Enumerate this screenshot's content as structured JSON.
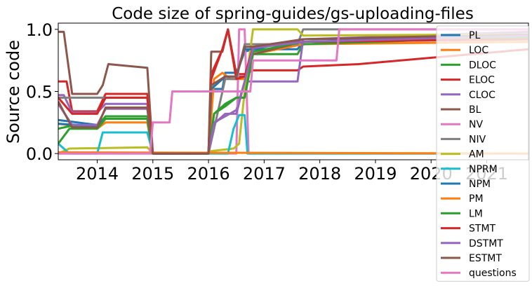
{
  "chart_data": {
    "type": "line",
    "title": "Code size of spring-guides/gs-uploading-files",
    "xlabel": "",
    "ylabel": "Source code",
    "xlim": [
      2013.3,
      2021.75
    ],
    "ylim": [
      -0.05,
      1.05
    ],
    "x_ticks": [
      2014,
      2015,
      2016,
      2017,
      2018,
      2019,
      2020,
      2021
    ],
    "x_tick_labels": [
      "2014",
      "2015",
      "2016",
      "2017",
      "2018",
      "2019",
      "2020",
      "2021"
    ],
    "y_ticks": [
      0.0,
      0.5,
      1.0
    ],
    "y_tick_labels": [
      "0.0",
      "0.5",
      "1.0"
    ],
    "legend_position": "right",
    "series": [
      {
        "name": "PL",
        "color": "#1f77b4",
        "x": [
          2013.3,
          2014.0,
          2014.15,
          2014.9,
          2015.0,
          2016.0,
          2016.05,
          2016.25,
          2016.3,
          2016.5,
          2016.65,
          2016.8,
          2017.6,
          2017.7,
          2021.75
        ],
        "y": [
          0.27,
          0.23,
          0.28,
          0.28,
          0.0,
          0.0,
          0.52,
          0.52,
          0.65,
          0.65,
          0.82,
          0.84,
          0.84,
          0.9,
          0.92
        ]
      },
      {
        "name": "LOC",
        "color": "#ff7f0e",
        "x": [
          2013.3,
          2014.0,
          2014.15,
          2014.9,
          2015.0,
          2016.0,
          2016.1,
          2016.25,
          2016.4,
          2016.65,
          2016.8,
          2017.7,
          2021.75
        ],
        "y": [
          0.24,
          0.2,
          0.25,
          0.25,
          0.0,
          0.0,
          0.6,
          0.65,
          0.6,
          0.6,
          0.8,
          0.88,
          0.9
        ]
      },
      {
        "name": "DLOC",
        "color": "#2ca02c",
        "x": [
          2013.3,
          2013.5,
          2014.0,
          2014.15,
          2014.9,
          2015.0,
          2016.0,
          2016.1,
          2016.3,
          2016.5,
          2016.65,
          2016.8,
          2017.6,
          2017.7,
          2021.75
        ],
        "y": [
          0.2,
          0.22,
          0.22,
          0.3,
          0.3,
          0.0,
          0.0,
          0.32,
          0.38,
          0.45,
          0.45,
          0.8,
          0.8,
          0.88,
          0.94
        ]
      },
      {
        "name": "ELOC",
        "color": "#d62728",
        "x": [
          2013.3,
          2013.45,
          2013.55,
          2014.0,
          2014.15,
          2014.9,
          2015.0,
          2016.0,
          2016.05,
          2016.25,
          2016.35,
          2016.5,
          2016.65,
          2016.8,
          2017.6,
          2017.7,
          2018.7,
          2021.75
        ],
        "y": [
          0.58,
          0.58,
          0.34,
          0.34,
          0.48,
          0.48,
          0.0,
          0.0,
          0.64,
          0.84,
          1.0,
          0.64,
          0.64,
          0.67,
          0.67,
          0.7,
          0.72,
          0.84
        ]
      },
      {
        "name": "CLOC",
        "color": "#9467bd",
        "x": [
          2013.3,
          2013.4,
          2013.55,
          2014.0,
          2014.15,
          2014.9,
          2015.0,
          2016.0,
          2016.1,
          2016.3,
          2016.5,
          2016.65,
          2016.8,
          2017.6,
          2017.7,
          2021.75
        ],
        "y": [
          0.47,
          0.47,
          0.33,
          0.33,
          0.4,
          0.4,
          0.0,
          0.0,
          0.25,
          0.3,
          0.35,
          0.58,
          0.58,
          0.58,
          0.92,
          0.98
        ]
      },
      {
        "name": "BL",
        "color": "#8c564b",
        "x": [
          2013.3,
          2013.4,
          2013.55,
          2014.0,
          2014.1,
          2014.2,
          2014.9,
          2015.0,
          2016.0,
          2016.05,
          2016.25,
          2016.35,
          2016.5,
          2016.65,
          2016.8,
          2017.7,
          2021.75
        ],
        "y": [
          0.98,
          0.98,
          0.48,
          0.48,
          0.55,
          0.72,
          0.69,
          0.0,
          0.0,
          0.82,
          0.82,
          1.0,
          0.62,
          0.62,
          0.8,
          0.9,
          0.92
        ]
      },
      {
        "name": "NV",
        "color": "#e377c2",
        "x": [
          2013.3,
          2014.9,
          2015.0,
          2016.0,
          2016.5,
          2016.55,
          2016.65,
          2016.72,
          2016.8,
          2021.75
        ],
        "y": [
          0.0,
          0.0,
          0.0,
          0.0,
          0.0,
          1.0,
          1.0,
          0.0,
          0.0,
          0.0
        ]
      },
      {
        "name": "NIV",
        "color": "#7f7f7f",
        "x": [
          2013.3,
          2014.9,
          2015.0,
          2016.0,
          2016.3,
          2016.5,
          2016.65,
          2016.8,
          2017.6,
          2017.7,
          2021.75
        ],
        "y": [
          0.45,
          0.45,
          0.0,
          0.0,
          0.6,
          0.6,
          0.88,
          0.88,
          0.88,
          1.0,
          1.0
        ]
      },
      {
        "name": "AM",
        "color": "#bcbd22",
        "x": [
          2013.3,
          2013.5,
          2014.9,
          2015.0,
          2016.0,
          2016.05,
          2016.45,
          2016.55,
          2016.65,
          2016.8,
          2017.6,
          2017.7,
          2021.75
        ],
        "y": [
          0.0,
          0.04,
          0.05,
          0.0,
          0.0,
          0.02,
          0.04,
          0.08,
          0.5,
          1.0,
          1.0,
          0.95,
          0.96
        ]
      },
      {
        "name": "NPRM",
        "color": "#17becf",
        "x": [
          2013.3,
          2013.5,
          2014.0,
          2014.1,
          2014.9,
          2015.0,
          2016.0,
          2016.2,
          2016.35,
          2016.45,
          2016.55,
          2016.65,
          2016.7,
          2021.75
        ],
        "y": [
          0.08,
          0.0,
          0.0,
          0.17,
          0.17,
          0.0,
          0.0,
          0.0,
          0.0,
          0.2,
          0.31,
          0.31,
          0.0,
          0.0
        ]
      },
      {
        "name": "NPM",
        "color": "#1f77b4",
        "x": [
          2013.3,
          2014.0,
          2014.15,
          2014.9,
          2015.0,
          2016.0,
          2016.05,
          2016.3,
          2016.5,
          2016.65,
          2016.8,
          2017.7,
          2021.75
        ],
        "y": [
          0.24,
          0.22,
          0.28,
          0.28,
          0.0,
          0.0,
          0.52,
          0.62,
          0.62,
          0.84,
          0.84,
          0.92,
          0.94
        ]
      },
      {
        "name": "PM",
        "color": "#ff7f0e",
        "x": [
          2013.3,
          2021.75
        ],
        "y": [
          0.01,
          0.0
        ]
      },
      {
        "name": "LM",
        "color": "#2ca02c",
        "x": [
          2013.3,
          2013.5,
          2014.0,
          2014.15,
          2014.9,
          2015.0,
          2016.0,
          2016.1,
          2016.3,
          2016.5,
          2016.65,
          2016.8,
          2017.7,
          2021.75
        ],
        "y": [
          0.08,
          0.2,
          0.2,
          0.28,
          0.28,
          0.0,
          0.0,
          0.32,
          0.4,
          0.45,
          0.45,
          0.82,
          0.9,
          0.93
        ]
      },
      {
        "name": "STMT",
        "color": "#d62728",
        "x": [
          2013.3,
          2013.55,
          2014.0,
          2014.15,
          2014.9,
          2015.0,
          2016.0,
          2016.05,
          2016.25,
          2016.35,
          2016.5,
          2016.65,
          2016.8,
          2017.7,
          2021.75
        ],
        "y": [
          0.45,
          0.32,
          0.32,
          0.45,
          0.45,
          0.0,
          0.0,
          0.6,
          0.84,
          1.0,
          0.6,
          0.62,
          0.86,
          0.9,
          0.92
        ]
      },
      {
        "name": "DSTMT",
        "color": "#9467bd",
        "x": [
          2013.3,
          2013.55,
          2014.0,
          2014.15,
          2014.9,
          2015.0,
          2016.0,
          2016.1,
          2016.3,
          2016.5,
          2016.65,
          2016.8,
          2017.7,
          2021.75
        ],
        "y": [
          0.4,
          0.23,
          0.23,
          0.36,
          0.36,
          0.0,
          0.0,
          0.24,
          0.32,
          0.32,
          0.58,
          0.85,
          0.9,
          0.95
        ]
      },
      {
        "name": "ESTMT",
        "color": "#8c564b",
        "x": [
          2013.3,
          2013.55,
          2014.0,
          2014.15,
          2014.9,
          2015.0,
          2016.0,
          2016.05,
          2016.3,
          2016.5,
          2016.65,
          2016.8,
          2017.7,
          2021.75
        ],
        "y": [
          0.42,
          0.21,
          0.21,
          0.37,
          0.37,
          0.0,
          0.0,
          0.55,
          0.62,
          0.62,
          0.86,
          0.86,
          0.92,
          0.96
        ]
      },
      {
        "name": "questions",
        "color": "#e377c2",
        "x": [
          2013.3,
          2014.95,
          2015.0,
          2015.3,
          2015.35,
          2016.5,
          2016.55,
          2016.75,
          2016.8,
          2017.7,
          2017.75,
          2018.3,
          2018.35,
          2021.75
        ],
        "y": [
          0.0,
          0.0,
          0.25,
          0.25,
          0.5,
          0.5,
          0.5,
          0.5,
          0.75,
          0.75,
          0.75,
          0.75,
          1.0,
          1.0
        ]
      }
    ]
  }
}
